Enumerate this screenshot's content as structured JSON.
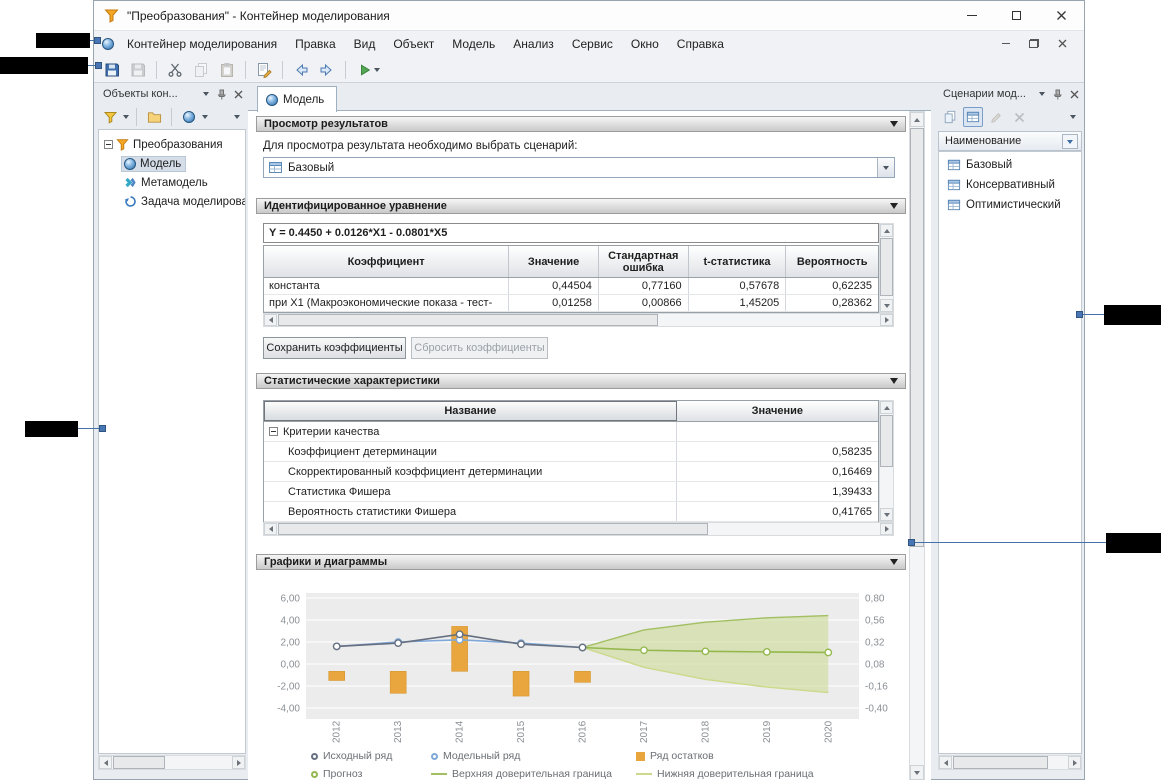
{
  "window": {
    "title": "\"Преобразования\" - Контейнер моделирования"
  },
  "menubar": {
    "items": [
      "Контейнер моделирования",
      "Правка",
      "Вид",
      "Объект",
      "Модель",
      "Анализ",
      "Сервис",
      "Окно",
      "Справка"
    ]
  },
  "toolbar": {
    "buttons": [
      "save",
      "save-all",
      "cut",
      "copy",
      "paste",
      "edit-formula",
      "back",
      "forward",
      "run"
    ]
  },
  "left_panel": {
    "title": "Объекты кон...",
    "toolbar": [
      "filter",
      "new-folder",
      "new-model-object"
    ],
    "root": "Преобразования",
    "items": [
      "Модель",
      "Метамодель",
      "Задача моделирован"
    ]
  },
  "right_panel": {
    "title": "Сценарии мод...",
    "toolbar": [
      "copy-scenario",
      "scenario-list",
      "edit",
      "delete"
    ],
    "column": "Наименование",
    "items": [
      "Базовый",
      "Консервативный",
      "Оптимистический"
    ]
  },
  "main": {
    "tab": "Модель",
    "results": {
      "title": "Просмотр результатов",
      "hint": "Для просмотра результата необходимо выбрать сценарий:",
      "scenario": "Базовый"
    },
    "equation": {
      "title": "Идентифицированное уравнение",
      "formula": "Y = 0.4450 + 0.0126*X1 - 0.0801*X5",
      "columns": [
        "Коэффициент",
        "Значение",
        "Стандартная ошибка",
        "t-статистика",
        "Вероятность"
      ],
      "rows": [
        {
          "name": "константа",
          "value": "0,44504",
          "stderr": "0,77160",
          "tstat": "0,57678",
          "prob": "0,62235"
        },
        {
          "name": "при X1 (Макроэкономические показа - тест-",
          "value": "0,01258",
          "stderr": "0,00866",
          "tstat": "1,45205",
          "prob": "0,28362"
        }
      ],
      "save_button": "Сохранить коэффициенты",
      "reset_button": "Сбросить коэффициенты"
    },
    "stats": {
      "title": "Статистические характеристики",
      "columns": [
        "Название",
        "Значение"
      ],
      "group": "Критерии качества",
      "rows": [
        {
          "name": "Коэффициент детерминации",
          "value": "0,58235"
        },
        {
          "name": "Скорректированный коэффициент детерминации",
          "value": "0,16469"
        },
        {
          "name": "Статистика Фишера",
          "value": "1,39433"
        },
        {
          "name": "Вероятность статистики Фишера",
          "value": "0,41765"
        }
      ]
    },
    "charts": {
      "title": "Графики и диаграммы"
    }
  },
  "chart_data": {
    "type": "line",
    "x": [
      "2012",
      "2013",
      "2014",
      "2015",
      "2016",
      "2017",
      "2018",
      "2019",
      "2020"
    ],
    "left_axis": {
      "min": -4,
      "max": 6,
      "ticks": [
        "6,00",
        "4,00",
        "2,00",
        "0,00",
        "-2,00",
        "-4,00"
      ]
    },
    "right_axis": {
      "min": -0.4,
      "max": 0.8,
      "ticks": [
        "0,80",
        "0,56",
        "0,32",
        "0,08",
        "-0,16",
        "-0,40"
      ]
    },
    "series": [
      {
        "name": "Исходный ряд",
        "type": "line",
        "axis": "left",
        "marker": "circle",
        "color": "#667080",
        "values": [
          1.6,
          1.9,
          2.7,
          1.8,
          1.5,
          null,
          null,
          null,
          null
        ]
      },
      {
        "name": "Модельный ряд",
        "type": "line",
        "axis": "left",
        "marker": "circle",
        "color": "#7fa8d8",
        "values": [
          1.6,
          2.0,
          2.2,
          1.9,
          1.5,
          null,
          null,
          null,
          null
        ]
      },
      {
        "name": "Ряд остатков",
        "type": "bar",
        "axis": "right",
        "marker": "square",
        "color": "#e9a63e",
        "values": [
          -0.1,
          -0.24,
          0.49,
          -0.27,
          -0.12,
          null,
          null,
          null,
          null
        ]
      },
      {
        "name": "Прогноз",
        "type": "line",
        "axis": "left",
        "marker": "circle",
        "color": "#94b84e",
        "values": [
          null,
          null,
          null,
          null,
          1.5,
          1.25,
          1.15,
          1.1,
          1.05
        ]
      },
      {
        "name": "Верхняя доверительная граница",
        "type": "line",
        "axis": "left",
        "marker": "line",
        "color": "#a2bf62",
        "values": [
          null,
          null,
          null,
          null,
          1.5,
          3.1,
          3.8,
          4.2,
          4.4
        ]
      },
      {
        "name": "Нижняя доверительная граница",
        "type": "line",
        "axis": "left",
        "marker": "line",
        "color": "#cdd98a",
        "values": [
          null,
          null,
          null,
          null,
          1.5,
          -0.3,
          -1.4,
          -2.1,
          -2.6
        ]
      }
    ],
    "band": {
      "upper_series": 4,
      "lower_series": 5,
      "fill": "#c9d98c",
      "opacity": 0.55
    },
    "legend_position": "bottom",
    "grid": true
  }
}
